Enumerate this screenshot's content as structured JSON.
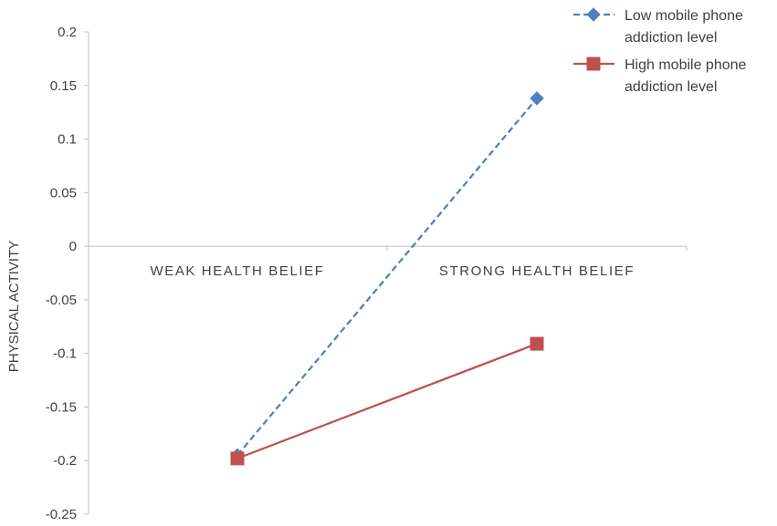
{
  "chart_data": {
    "type": "line",
    "categories": [
      "WEAK HEALTH BELIEF",
      "STRONG HEALTH BELIEF"
    ],
    "ylabel": "PHYSICAL ACTIVITY",
    "xlabel": "",
    "title": "",
    "ylim": [
      -0.25,
      0.2
    ],
    "yticks": [
      0.2,
      0.15,
      0.1,
      0.05,
      0,
      -0.05,
      -0.1,
      -0.15,
      -0.2,
      -0.25
    ],
    "ytick_labels": [
      "0.2",
      "0.15",
      "0.1",
      "0.05",
      "0",
      "-0.05",
      "-0.1",
      "-0.15",
      "-0.2",
      "-0.25"
    ],
    "grid": false,
    "legend": "top-right",
    "series": [
      {
        "name": "Low mobile phone addiction level",
        "name_lines": [
          "Low mobile phone",
          "addiction level"
        ],
        "values": [
          -0.195,
          0.138
        ],
        "color": "#4F81BD",
        "line_style": "dashed",
        "marker": "diamond"
      },
      {
        "name": "High mobile phone addiction level",
        "name_lines": [
          "High mobile phone",
          "addiction level"
        ],
        "values": [
          -0.198,
          -0.091
        ],
        "color": "#C0504D",
        "line_style": "solid",
        "marker": "square"
      }
    ]
  }
}
